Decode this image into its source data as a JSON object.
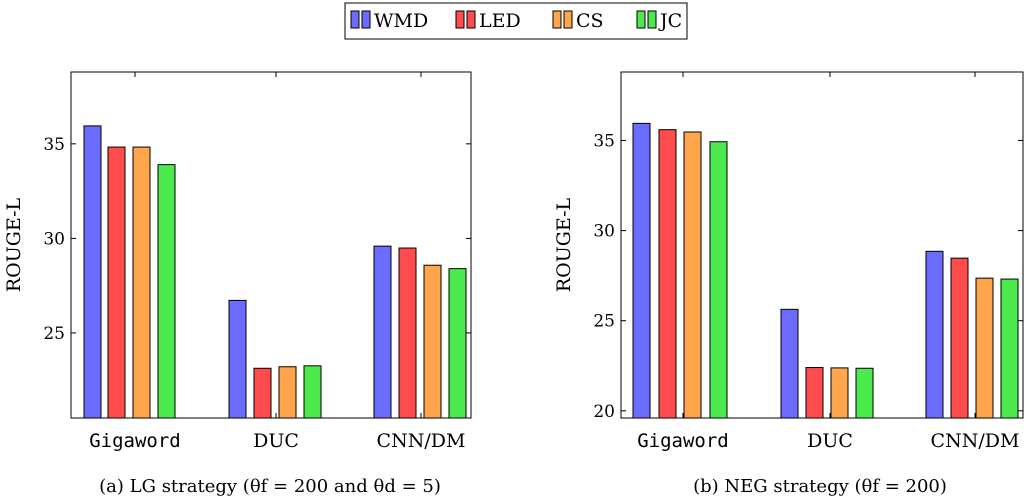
{
  "legend": {
    "items": [
      {
        "label": "WMD",
        "color": "#6b6bff"
      },
      {
        "label": "LED",
        "color": "#ff4d4d"
      },
      {
        "label": "CS",
        "color": "#ffa64d"
      },
      {
        "label": "JC",
        "color": "#4dea4d"
      }
    ]
  },
  "chart_data": [
    {
      "type": "bar",
      "caption": "(a) LG strategy (θf = 200 and θd = 5)",
      "ylabel": "ROUGE-L",
      "categories": [
        "Gigaword",
        "DUC",
        "CNN/DM"
      ],
      "ylim": [
        20.5,
        38.8
      ],
      "yticks": [
        25,
        30,
        35
      ],
      "grid": false,
      "legend": "top-center (shared)",
      "series": [
        {
          "name": "WMD",
          "values": [
            35.95,
            26.72,
            29.59
          ]
        },
        {
          "name": "LED",
          "values": [
            34.83,
            23.13,
            29.49
          ]
        },
        {
          "name": "CS",
          "values": [
            34.83,
            23.21,
            28.58
          ]
        },
        {
          "name": "JC",
          "values": [
            33.9,
            23.26,
            28.4
          ]
        }
      ]
    },
    {
      "type": "bar",
      "caption": "(b) NEG strategy (θf = 200)",
      "ylabel": "ROUGE-L",
      "categories": [
        "Gigaword",
        "DUC",
        "CNN/DM"
      ],
      "ylim": [
        19.6,
        38.8
      ],
      "yticks": [
        20,
        25,
        30,
        35
      ],
      "grid": false,
      "legend": "top-center (shared)",
      "series": [
        {
          "name": "WMD",
          "values": [
            35.95,
            25.63,
            28.85
          ]
        },
        {
          "name": "LED",
          "values": [
            35.6,
            22.4,
            28.47
          ]
        },
        {
          "name": "CS",
          "values": [
            35.47,
            22.38,
            27.36
          ]
        },
        {
          "name": "JC",
          "values": [
            34.93,
            22.36,
            27.31
          ]
        }
      ]
    }
  ]
}
